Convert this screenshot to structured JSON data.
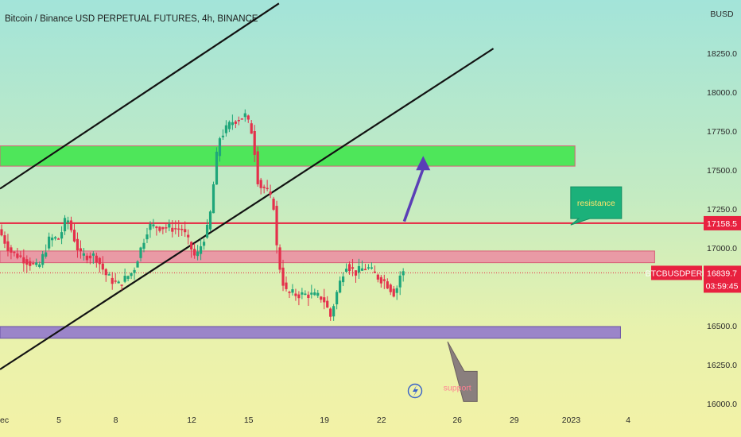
{
  "title": "Bitcoin / Binance USD PERPETUAL FUTURES, 4h, BINANCE",
  "currency": "BUSD",
  "chart_data": {
    "type": "candlestick",
    "y_ticks": [
      16000,
      16250,
      16500,
      16750,
      17000,
      17250,
      17500,
      17750,
      18000,
      18250
    ],
    "y_tick_labels": [
      "16000.0",
      "16250.0",
      "16500.0",
      "16750.0",
      "17000.0",
      "17250.0",
      "17500.0",
      "17750.0",
      "18000.0",
      "18250.0"
    ],
    "x_ticks": [
      {
        "label": "ec",
        "day": 1.9
      },
      {
        "label": "5",
        "day": 5
      },
      {
        "label": "8",
        "day": 8
      },
      {
        "label": "12",
        "day": 12
      },
      {
        "label": "15",
        "day": 15
      },
      {
        "label": "19",
        "day": 19
      },
      {
        "label": "22",
        "day": 22
      },
      {
        "label": "26",
        "day": 26
      },
      {
        "label": "29",
        "day": 29
      },
      {
        "label": "2023",
        "day": 32
      },
      {
        "label": "4",
        "day": 35
      }
    ],
    "price_path": [
      [
        1.9,
        17120
      ],
      [
        2.5,
        16980
      ],
      [
        3.2,
        16930
      ],
      [
        4.0,
        16870
      ],
      [
        4.6,
        17060
      ],
      [
        5.1,
        17060
      ],
      [
        5.5,
        17200
      ],
      [
        6.2,
        16950
      ],
      [
        7.0,
        16950
      ],
      [
        7.6,
        16820
      ],
      [
        8.2,
        16760
      ],
      [
        9.0,
        16850
      ],
      [
        9.8,
        17140
      ],
      [
        10.8,
        17130
      ],
      [
        11.6,
        17120
      ],
      [
        12.3,
        16930
      ],
      [
        13.0,
        17150
      ],
      [
        13.5,
        17700
      ],
      [
        14.2,
        17810
      ],
      [
        14.9,
        17850
      ],
      [
        15.3,
        17730
      ],
      [
        15.6,
        17400
      ],
      [
        16.0,
        17380
      ],
      [
        16.4,
        17270
      ],
      [
        16.6,
        16950
      ],
      [
        17.0,
        16720
      ],
      [
        17.6,
        16700
      ],
      [
        18.3,
        16700
      ],
      [
        19.0,
        16680
      ],
      [
        19.4,
        16560
      ],
      [
        19.7,
        16700
      ],
      [
        20.2,
        16900
      ],
      [
        20.7,
        16840
      ],
      [
        21.3,
        16880
      ],
      [
        21.8,
        16820
      ],
      [
        22.3,
        16780
      ],
      [
        22.8,
        16700
      ],
      [
        23.1,
        16840
      ]
    ],
    "resistance_line": 17158.5,
    "current_price": 16839.7,
    "countdown": "03:59:45",
    "symbol": "BTCBUSDPERP",
    "zones": [
      {
        "name": "upper-green-zone",
        "from": 17525,
        "to": 17655,
        "x_start": 1.9,
        "x_end": 32.2,
        "color": "#4ee65a",
        "border": "#d75f76"
      },
      {
        "name": "red-zone",
        "from": 16905,
        "to": 16980,
        "x_start": 1.9,
        "x_end": 36.4,
        "color": "#e99aa5",
        "border": "#d75f76"
      },
      {
        "name": "purple-zone",
        "from": 16420,
        "to": 16495,
        "x_start": 1.9,
        "x_end": 34.6,
        "color": "#9b85c9",
        "border": "#6a52a6"
      }
    ],
    "channel_lines": [
      {
        "x1": 1.9,
        "y1": 17380,
        "x2": 16.6,
        "y2": 18570
      },
      {
        "x1": 1.9,
        "y1": 16220,
        "x2": 27.9,
        "y2": 18280
      }
    ],
    "annotations": [
      {
        "text": "resistance",
        "x": 33.4,
        "y": 17290
      },
      {
        "text": "support",
        "x": 26.0,
        "y": 16105
      }
    ],
    "arrow": {
      "from": [
        23.2,
        17170
      ],
      "to": [
        24.2,
        17550
      ]
    }
  }
}
